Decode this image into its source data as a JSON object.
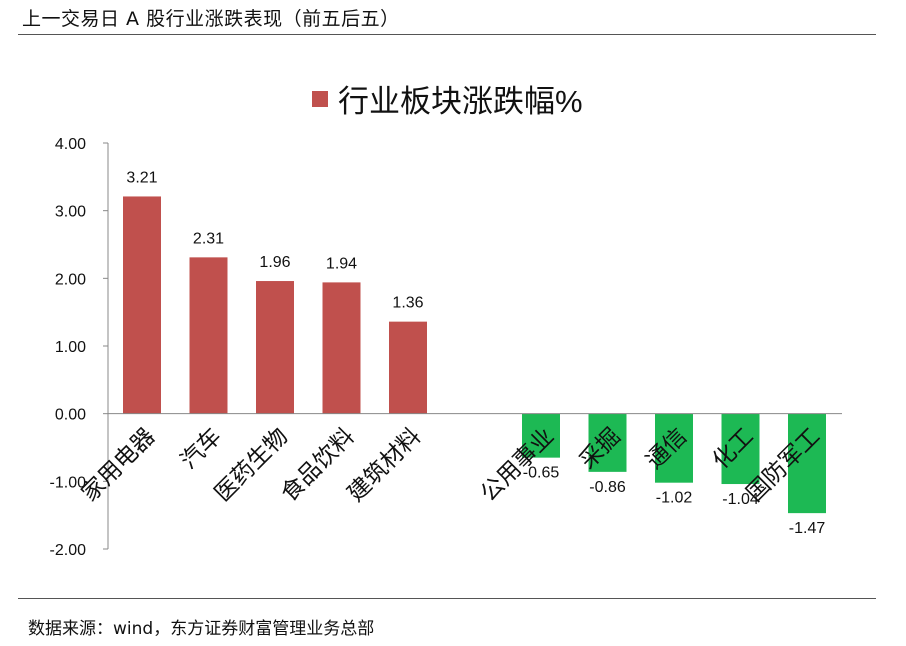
{
  "header": {
    "title": "上一交易日 A 股行业涨跌表现（前五后五）"
  },
  "source": {
    "text": "数据来源：wind，东方证券财富管理业务总部"
  },
  "colors": {
    "positive": "#C0504D",
    "negative": "#1DB954"
  },
  "chart_data": {
    "type": "bar",
    "title": "",
    "legend": {
      "label": "行业板块涨跌幅%",
      "position": "top"
    },
    "categories": [
      "家用电器",
      "汽车",
      "医药生物",
      "食品饮料",
      "建筑材料",
      "",
      "公用事业",
      "采掘",
      "通信",
      "化工",
      "国防军工"
    ],
    "values": [
      3.21,
      2.31,
      1.96,
      1.94,
      1.36,
      null,
      -0.65,
      -0.86,
      -1.02,
      -1.04,
      -1.47
    ],
    "data_labels": [
      "3.21",
      "2.31",
      "1.96",
      "1.94",
      "1.36",
      "",
      "-0.65",
      "-0.86",
      "-1.02",
      "-1.04",
      "-1.47"
    ],
    "ylim": [
      -2,
      4
    ],
    "yticks": [
      "4.00",
      "3.00",
      "2.00",
      "1.00",
      "0.00",
      "-1.00",
      "-2.00"
    ],
    "ytick_values": [
      4,
      3,
      2,
      1,
      0,
      -1,
      -2
    ],
    "xlabel": "",
    "ylabel": "",
    "grid": false
  }
}
